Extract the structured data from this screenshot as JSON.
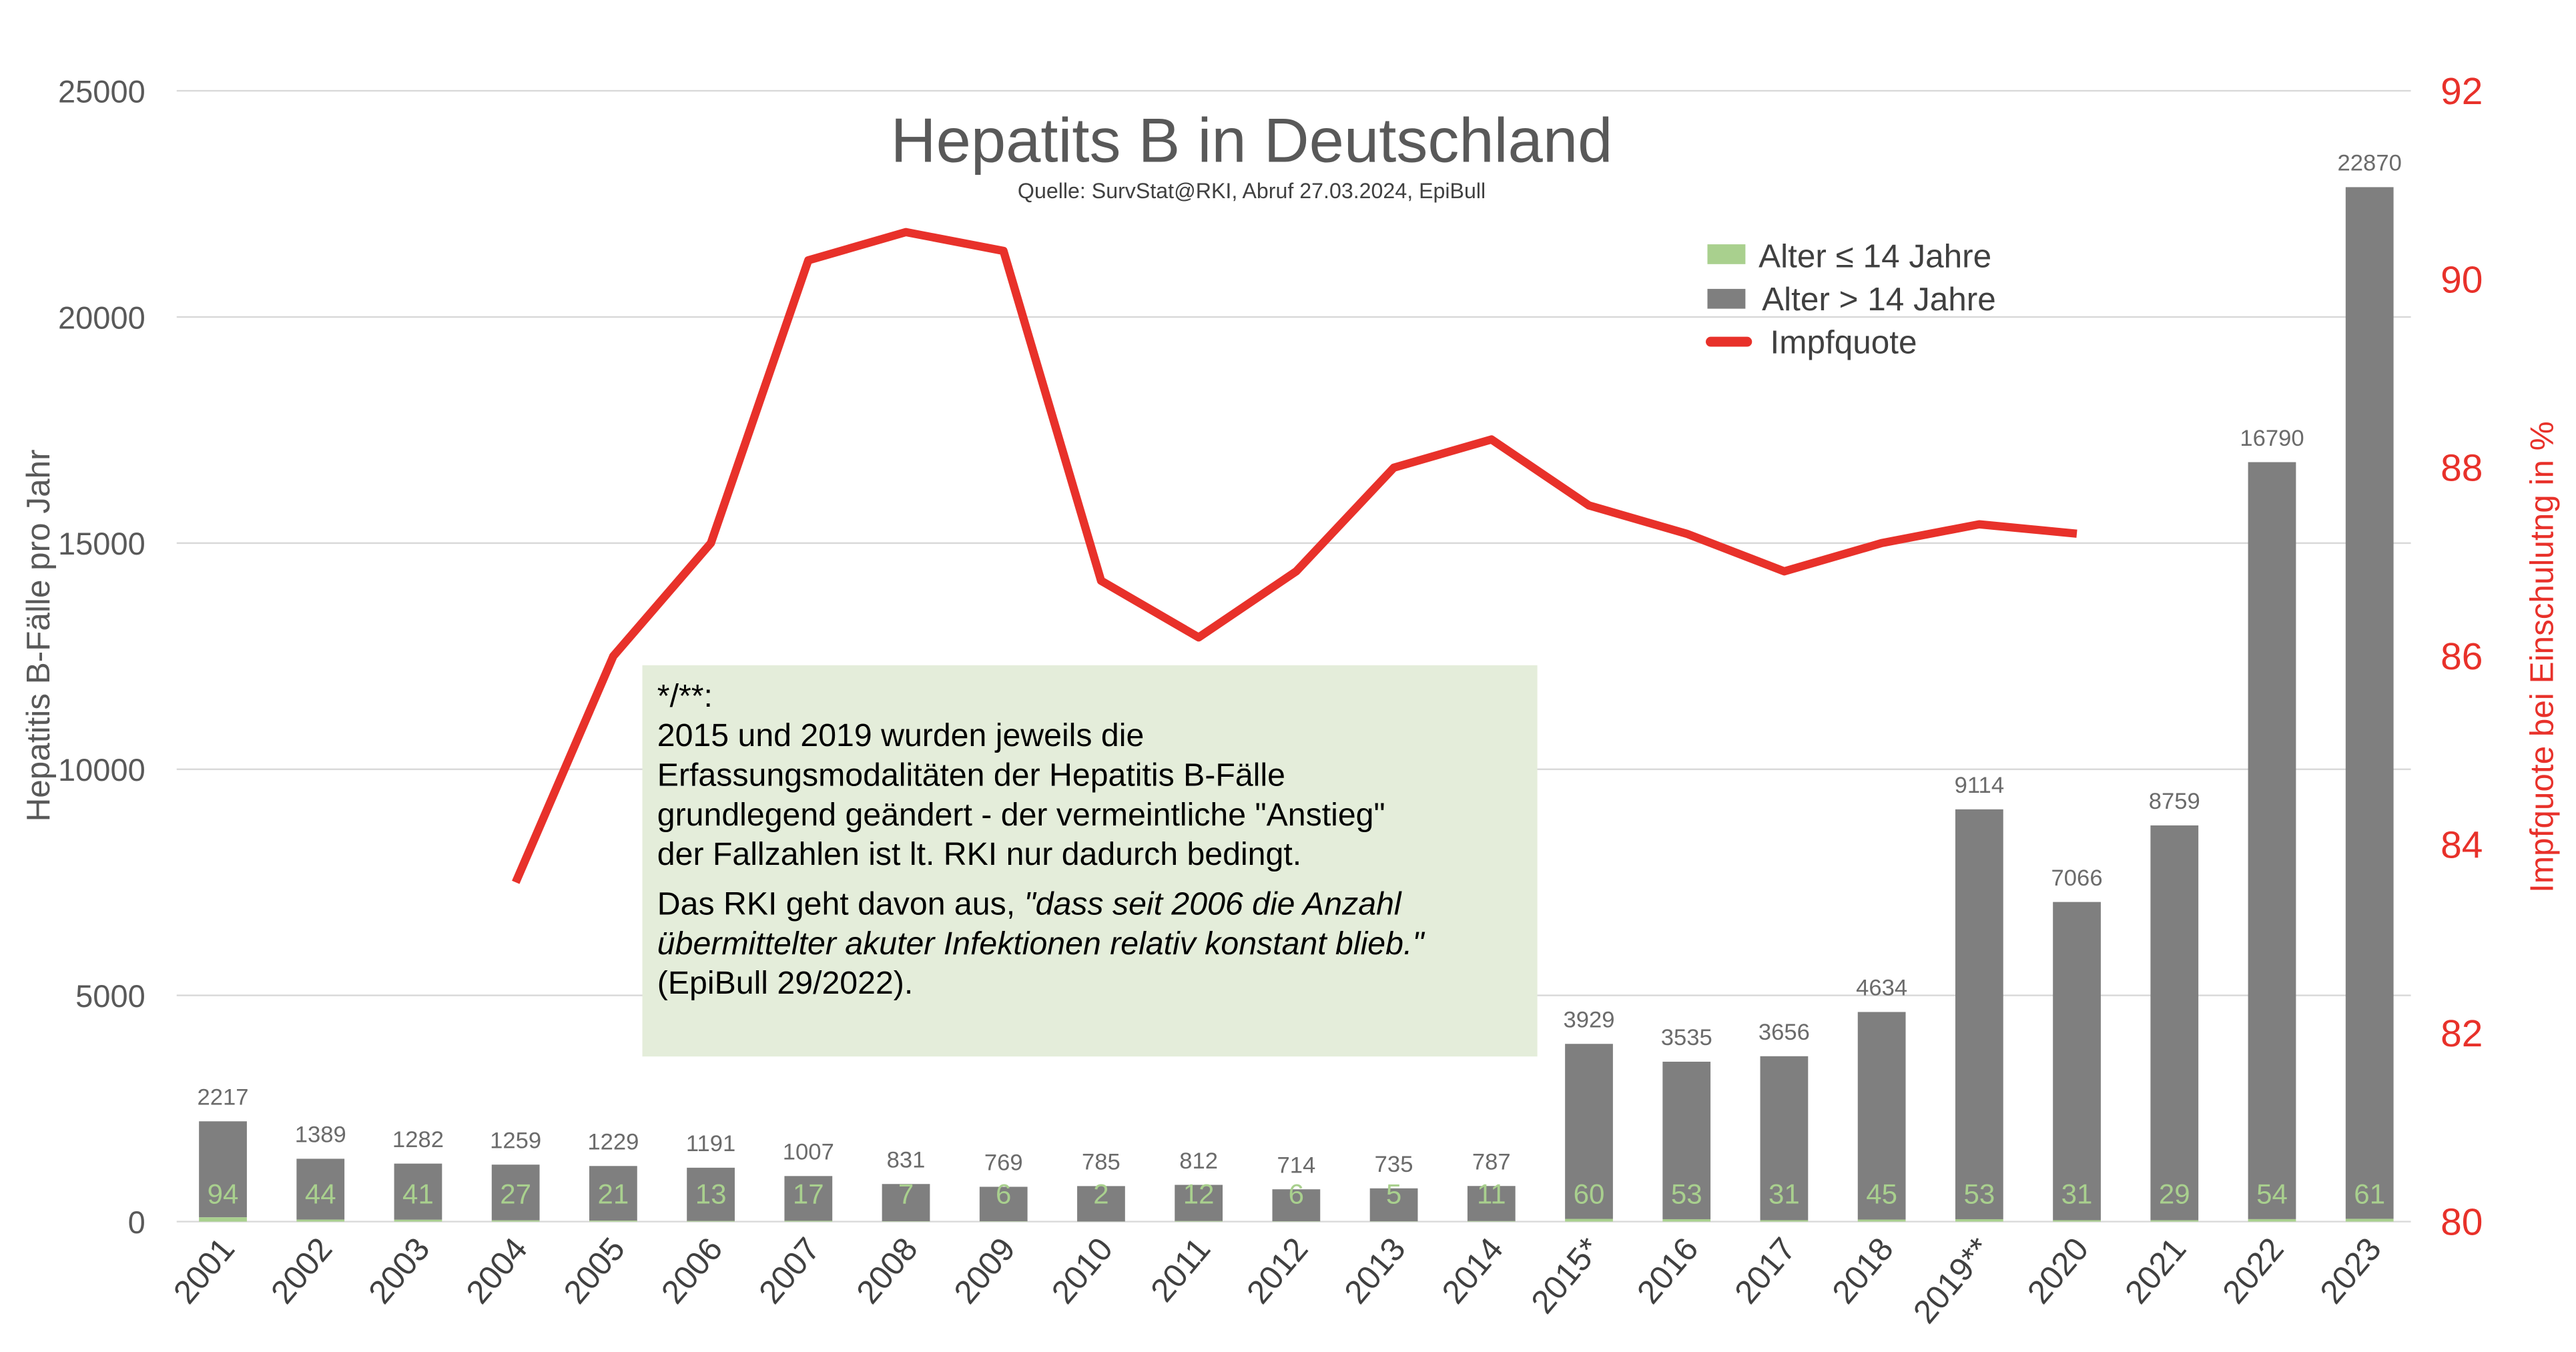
{
  "chart_data": {
    "type": "bar",
    "title": "Hepatits B in Deutschland",
    "subtitle": "Quelle: SurvStat@RKI, Abruf 27.03.2024, EpiBull",
    "ylabel": "Hepatitis B-Fälle pro Jahr",
    "y2label": "Impfquote bei Einschulutng in %",
    "ylim": [
      0,
      25000
    ],
    "y_ticks": [
      "0",
      "5000",
      "10000",
      "15000",
      "20000",
      "25000"
    ],
    "y2lim": [
      80,
      92
    ],
    "y2_ticks": [
      "80",
      "82",
      "84",
      "86",
      "88",
      "90",
      "92"
    ],
    "grid": true,
    "legend_position": "top-right",
    "categories": [
      "2001",
      "2002",
      "2003",
      "2004",
      "2005",
      "2006",
      "2007",
      "2008",
      "2009",
      "2010",
      "2011",
      "2012",
      "2013",
      "2014",
      "2015*",
      "2016",
      "2017",
      "2018",
      "2019**",
      "2020",
      "2021",
      "2022",
      "2023"
    ],
    "series": [
      {
        "name": "Alter ≤ 14 Jahre",
        "type": "bar-stacked",
        "color": "#a9d08e",
        "values": [
          94,
          44,
          41,
          27,
          21,
          13,
          17,
          7,
          6,
          2,
          12,
          6,
          5,
          11,
          60,
          53,
          31,
          45,
          53,
          31,
          29,
          54,
          61
        ]
      },
      {
        "name": "Alter > 14 Jahre",
        "type": "bar-stacked",
        "color": "#7f7f7f",
        "values": [
          2123,
          1345,
          1241,
          1232,
          1208,
          1178,
          990,
          824,
          763,
          783,
          800,
          708,
          730,
          776,
          3869,
          3482,
          3625,
          4589,
          9061,
          7035,
          8730,
          16736,
          22809
        ]
      },
      {
        "name": "Impfquote",
        "type": "line",
        "axis": "right",
        "color": "#e8312a",
        "values": [
          null,
          null,
          null,
          83.6,
          86.0,
          87.2,
          90.2,
          90.5,
          90.3,
          86.8,
          86.2,
          86.9,
          88.0,
          88.3,
          87.6,
          87.3,
          86.9,
          87.2,
          87.4,
          87.3,
          null,
          null,
          null
        ]
      }
    ],
    "totals": [
      2217,
      1389,
      1282,
      1259,
      1229,
      1191,
      1007,
      831,
      769,
      785,
      812,
      714,
      735,
      787,
      3929,
      3535,
      3656,
      4634,
      9114,
      7066,
      8759,
      16790,
      22870
    ],
    "annotation": {
      "heading": "*/**:",
      "lines": [
        "2015 und 2019 wurden jeweils die",
        "Erfassungsmodalitäten der Hepatitis B-Fälle",
        "grundlegend geändert - der vermeintliche \"Anstieg\"",
        "der Fallzahlen ist lt. RKI nur dadurch bedingt."
      ],
      "line5_normal": "Das RKI geht davon aus, ",
      "line5_italic": "\"dass seit 2006 die Anzahl",
      "line6_italic": "übermittelter akuter Infektionen relativ konstant blieb.\"",
      "line7": "(EpiBull 29/2022)."
    }
  }
}
